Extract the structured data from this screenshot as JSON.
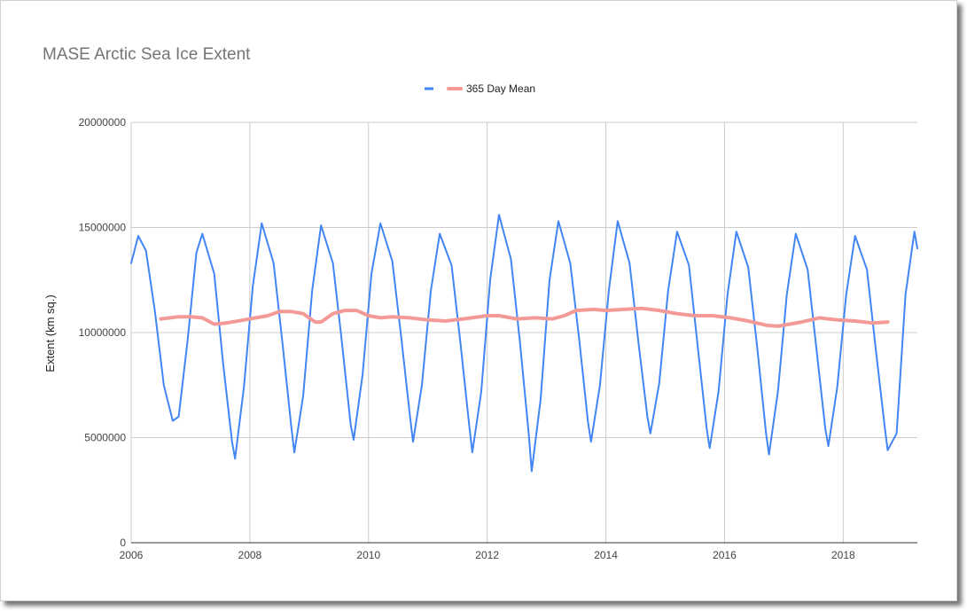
{
  "chart_data": {
    "type": "line",
    "title": "MASE Arctic Sea Ice Extent",
    "xlabel": "",
    "ylabel": "Extent (km sq.)",
    "xlim": [
      2006,
      2019.25
    ],
    "ylim": [
      0,
      20000000
    ],
    "x_ticks": [
      "2006",
      "2008",
      "2010",
      "2012",
      "2014",
      "2016",
      "2018"
    ],
    "y_ticks": [
      "0",
      "5000000",
      "10000000",
      "15000000",
      "20000000"
    ],
    "grid": true,
    "legend_position": "top",
    "series": [
      {
        "name": "",
        "color": "#4285f4",
        "x": [
          2006.0,
          2006.12,
          2006.25,
          2006.4,
          2006.55,
          2006.7,
          2006.8,
          2006.95,
          2007.1,
          2007.2,
          2007.4,
          2007.55,
          2007.7,
          2007.75,
          2007.9,
          2008.05,
          2008.2,
          2008.4,
          2008.55,
          2008.7,
          2008.75,
          2008.9,
          2009.05,
          2009.2,
          2009.4,
          2009.55,
          2009.7,
          2009.75,
          2009.9,
          2010.05,
          2010.2,
          2010.4,
          2010.55,
          2010.7,
          2010.75,
          2010.9,
          2011.05,
          2011.2,
          2011.4,
          2011.55,
          2011.7,
          2011.75,
          2011.9,
          2012.05,
          2012.2,
          2012.4,
          2012.55,
          2012.7,
          2012.75,
          2012.9,
          2013.05,
          2013.2,
          2013.4,
          2013.55,
          2013.7,
          2013.75,
          2013.9,
          2014.05,
          2014.2,
          2014.4,
          2014.55,
          2014.7,
          2014.75,
          2014.9,
          2015.05,
          2015.2,
          2015.4,
          2015.55,
          2015.7,
          2015.75,
          2015.9,
          2016.05,
          2016.2,
          2016.4,
          2016.55,
          2016.7,
          2016.75,
          2016.9,
          2017.05,
          2017.2,
          2017.4,
          2017.55,
          2017.7,
          2017.75,
          2017.9,
          2018.05,
          2018.2,
          2018.4,
          2018.55,
          2018.7,
          2018.75,
          2018.9,
          2019.05,
          2019.2,
          2019.25
        ],
        "values": [
          13300000,
          14600000,
          13900000,
          11000000,
          7500000,
          5800000,
          6000000,
          9600000,
          13800000,
          14700000,
          12800000,
          8500000,
          4800000,
          4000000,
          7400000,
          12200000,
          15200000,
          13300000,
          9500000,
          5500000,
          4300000,
          7000000,
          12000000,
          15100000,
          13300000,
          9600000,
          5600000,
          4900000,
          8000000,
          12800000,
          15200000,
          13400000,
          9800000,
          6000000,
          4800000,
          7500000,
          12000000,
          14700000,
          13200000,
          9500000,
          5500000,
          4300000,
          7200000,
          12500000,
          15600000,
          13500000,
          9600000,
          5200000,
          3400000,
          6800000,
          12500000,
          15300000,
          13300000,
          9700000,
          5700000,
          4800000,
          7500000,
          12000000,
          15300000,
          13300000,
          9500000,
          6000000,
          5200000,
          7600000,
          12000000,
          14800000,
          13200000,
          9300000,
          5400000,
          4500000,
          7200000,
          11800000,
          14800000,
          13100000,
          9300000,
          5200000,
          4200000,
          7200000,
          11800000,
          14700000,
          13000000,
          9200000,
          5400000,
          4600000,
          7400000,
          11800000,
          14600000,
          13000000,
          9200000,
          5500000,
          4400000,
          5200000,
          11800000,
          14800000,
          14000000
        ]
      },
      {
        "name": "365 Day Mean",
        "color": "#f39a97",
        "x": [
          2006.5,
          2006.8,
          2007.0,
          2007.2,
          2007.4,
          2007.6,
          2007.9,
          2008.1,
          2008.3,
          2008.5,
          2008.7,
          2008.9,
          2009.1,
          2009.2,
          2009.4,
          2009.6,
          2009.8,
          2010.0,
          2010.2,
          2010.4,
          2010.7,
          2011.0,
          2011.3,
          2011.6,
          2012.0,
          2012.2,
          2012.5,
          2012.8,
          2013.1,
          2013.3,
          2013.5,
          2013.8,
          2014.0,
          2014.3,
          2014.6,
          2014.9,
          2015.2,
          2015.5,
          2015.8,
          2016.1,
          2016.4,
          2016.7,
          2016.9,
          2017.1,
          2017.3,
          2017.6,
          2017.9,
          2018.2,
          2018.5,
          2018.75
        ],
        "values": [
          10650000,
          10750000,
          10750000,
          10700000,
          10400000,
          10450000,
          10600000,
          10700000,
          10800000,
          11000000,
          11000000,
          10900000,
          10500000,
          10500000,
          10900000,
          11050000,
          11050000,
          10800000,
          10700000,
          10750000,
          10700000,
          10600000,
          10550000,
          10650000,
          10800000,
          10800000,
          10650000,
          10700000,
          10650000,
          10800000,
          11050000,
          11100000,
          11050000,
          11100000,
          11150000,
          11050000,
          10900000,
          10800000,
          10800000,
          10700000,
          10550000,
          10350000,
          10300000,
          10400000,
          10500000,
          10700000,
          10600000,
          10550000,
          10450000,
          10500000
        ]
      }
    ]
  }
}
